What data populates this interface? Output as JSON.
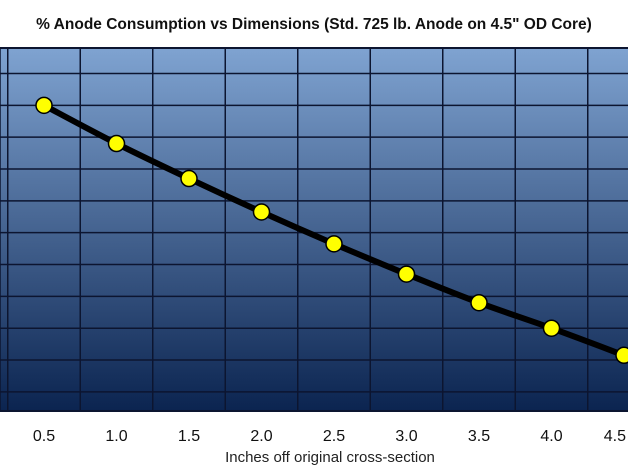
{
  "chart_data": {
    "type": "line",
    "title": "% Anode Consumption vs Dimensions (Std. 725 lb. Anode on 4.5\" OD Core)",
    "xlabel": "Inches off original cross-section",
    "ylabel": "",
    "x_ticks": [
      "0.5",
      "1.0",
      "1.5",
      "2.0",
      "2.5",
      "3.0",
      "3.5",
      "4.0",
      "4.5"
    ],
    "series": [
      {
        "x": [
          0.5,
          1.0,
          1.5,
          2.0,
          2.5,
          3.0,
          3.5,
          4.0,
          4.5
        ],
        "y": [
          90,
          78,
          67,
          56.5,
          46.5,
          37,
          28,
          20,
          11.5
        ]
      }
    ],
    "ylim": [
      -6,
      108
    ],
    "y_gridlines": [
      0,
      10,
      20,
      30,
      40,
      50,
      60,
      70,
      80,
      90,
      100
    ],
    "grid": true,
    "colors": {
      "background_top": "#7fa3d1",
      "background_bottom": "#0b2450",
      "grid": "#0c1530",
      "line": "#000000",
      "marker_fill": "#ffff00",
      "marker_stroke": "#000000"
    }
  }
}
